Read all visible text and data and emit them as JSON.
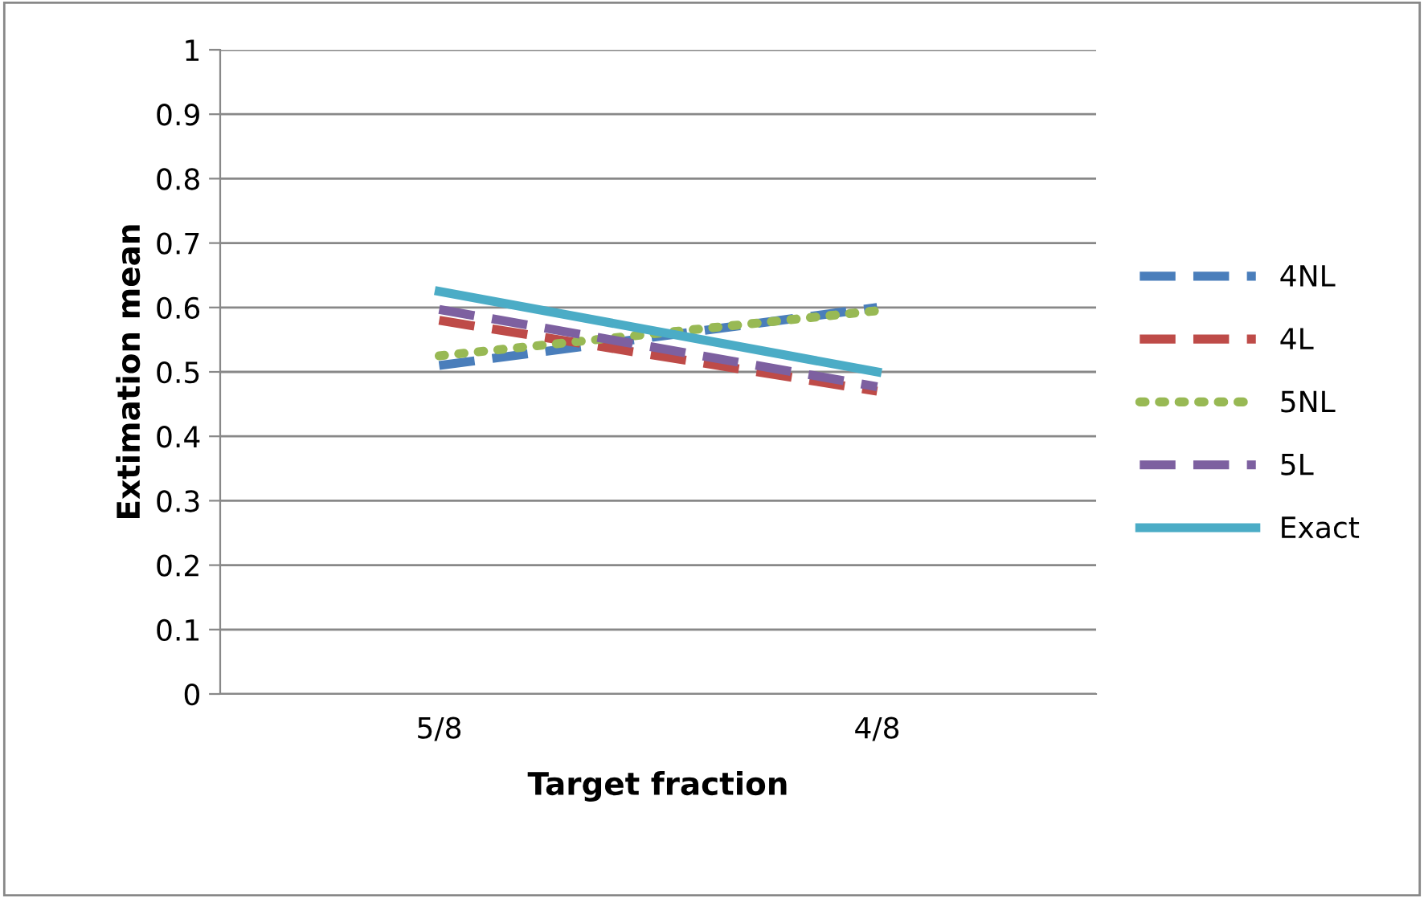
{
  "chart_data": {
    "type": "line",
    "xlabel": "Target fraction",
    "ylabel": "Extimation mean",
    "categories": [
      "5/8",
      "4/8"
    ],
    "series": [
      {
        "name": "4NL",
        "color": "#4a7ebb",
        "values": [
          0.51,
          0.6
        ],
        "line_style": "dashed"
      },
      {
        "name": "4L",
        "color": "#be4b48",
        "values": [
          0.58,
          0.47
        ],
        "line_style": "dashed"
      },
      {
        "name": "5NL",
        "color": "#98b954",
        "values": [
          0.525,
          0.595
        ],
        "line_style": "dotted"
      },
      {
        "name": "5L",
        "color": "#7d60a0",
        "values": [
          0.597,
          0.477
        ],
        "line_style": "dashed"
      },
      {
        "name": "Exact",
        "color": "#4bacc6",
        "values": [
          0.625,
          0.5
        ],
        "line_style": "solid"
      }
    ],
    "ylim": [
      0,
      1
    ],
    "yticks": [
      0,
      0.1,
      0.2,
      0.3,
      0.4,
      0.5,
      0.6,
      0.7,
      0.8,
      0.9,
      1
    ],
    "grid": "y",
    "legend": "right",
    "marker": "none"
  }
}
